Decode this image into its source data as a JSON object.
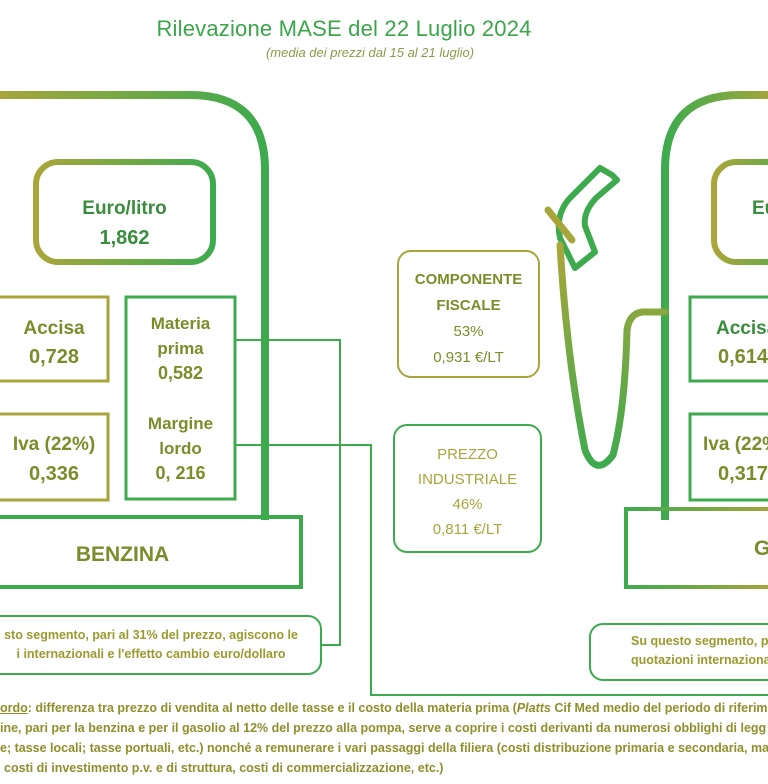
{
  "header": {
    "title": "Rilevazione MASE del 22 Luglio 2024",
    "subtitle": "(media dei prezzi dal 15 al 21 luglio)"
  },
  "benzina": {
    "price_label": "Euro/litro",
    "price_value": "1,862",
    "accisa_label": "Accisa",
    "accisa_value": "0,728",
    "iva_label": "Iva (22%)",
    "iva_value": "0,336",
    "materia_label_1": "Materia",
    "materia_label_2": "prima",
    "materia_value": "0,582",
    "margine_label_1": "Margine",
    "margine_label_2": "lordo",
    "margine_value": "0, 216",
    "fuel_name": "BENZINA",
    "note_line_1": "sto segmento, pari al 31% del prezzo, agiscono le",
    "note_line_2": "i internazionali e l'effetto cambio euro/dollaro"
  },
  "center": {
    "fiscale_line_1": "COMPONENTE",
    "fiscale_line_2": "FISCALE",
    "fiscale_pct": "53%",
    "fiscale_value": "0,931 €/LT",
    "industriale_line_1": "PREZZO",
    "industriale_line_2": "INDUSTRIALE",
    "industriale_pct": "46%",
    "industriale_value": "0,811 €/LT"
  },
  "gasolio": {
    "price_label": "Eu",
    "accisa_label": "Accisa",
    "accisa_value": "0,614",
    "iva_label": "Iva (22%",
    "iva_value": "0,317",
    "fuel_name": "G",
    "note_line_1": "Su questo segmento, p",
    "note_line_2": "quotazioni internaziona"
  },
  "footnote": {
    "line1_term": "ordo",
    "line1_rest": ": differenza tra prezzo di vendita al netto delle tasse e il costo della materia prima (",
    "line1_italic": "Platts",
    "line1_tail": " Cif Med medio del periodo di riferim",
    "line2": "ine, pari per la benzina e per il gasolio al 12% del prezzo alla pompa, serve a coprire i costi derivanti da numerosi obblighi di legg",
    "line3": "e; tasse locali; tasse portuali, etc.) nonché a remunerare i vari passaggi della filiera (costi distribuzione primaria e secondaria, ma",
    "line4": "costi di investimento p.v. e di struttura, costi di commercializzazione, etc.)"
  },
  "colors": {
    "olive": "#a8a63a",
    "green": "#3caa4c",
    "text_olive": "#7d8c2a",
    "text_green": "#3a8c3e"
  }
}
